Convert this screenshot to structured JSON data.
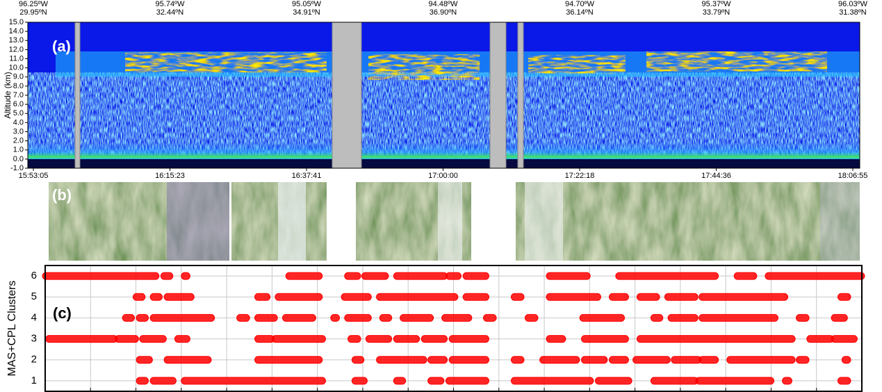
{
  "chart_data": [
    {
      "type": "curtain",
      "label": "(a)",
      "y_label": "Altitude (km)",
      "ylim": [
        -1,
        15
      ],
      "yticks": [
        {
          "value": -1,
          "label": "-1.0"
        },
        {
          "value": 0,
          "label": "0.0"
        },
        {
          "value": 1,
          "label": "1.0"
        },
        {
          "value": 2,
          "label": "2.0"
        },
        {
          "value": 3,
          "label": "3.0"
        },
        {
          "value": 4,
          "label": "4.0"
        },
        {
          "value": 5,
          "label": "5.0"
        },
        {
          "value": 6,
          "label": "6.0"
        },
        {
          "value": 7,
          "label": "7.0"
        },
        {
          "value": 8,
          "label": "8.0"
        },
        {
          "value": 9,
          "label": "9.0"
        },
        {
          "value": 10,
          "label": "10.0"
        },
        {
          "value": 11,
          "label": "11.0"
        },
        {
          "value": 12,
          "label": "12.0"
        },
        {
          "value": 13,
          "label": "13.0"
        },
        {
          "value": 14,
          "label": "14.0"
        },
        {
          "value": 15,
          "label": "15.0"
        }
      ],
      "categories": [
        "15:53:05",
        "16:15:23",
        "16:37:41",
        "17:00:00",
        "17:22:18",
        "17:44:36",
        "18:06:55"
      ],
      "top_labels": [
        [
          "96.25ºW",
          "29.95ºN"
        ],
        [
          "95.74ºW",
          "32.44ºN"
        ],
        [
          "95.05ºW",
          "34.91ºN"
        ],
        [
          "94.48ºW",
          "36.90ºN"
        ],
        [
          "94.70ºW",
          "36.14ºN"
        ],
        [
          "95.37ºW",
          "33.79ºN"
        ],
        [
          "96.03ºW",
          "31.38ºN"
        ]
      ]
    },
    {
      "type": "segments",
      "label": "(c)",
      "y_label": "MAS+CPL Clusters",
      "color": "#ff0000",
      "xlim": [
        0,
        100
      ],
      "ylim": [
        0.5,
        6.5
      ],
      "yticks": [
        1,
        2,
        3,
        4,
        5,
        6
      ],
      "series": [
        {
          "y": 6,
          "segments": [
            [
              0,
              13.6
            ],
            [
              14.5,
              15.3
            ],
            [
              17,
              17.4
            ],
            [
              29.8,
              33.6
            ],
            [
              37,
              38.3
            ],
            [
              39.1,
              41.7
            ],
            [
              43,
              48.9
            ],
            [
              49.4,
              50.6
            ],
            [
              51.5,
              54
            ],
            [
              61.7,
              66.4
            ],
            [
              70.2,
              82.1
            ],
            [
              84.7,
              86.8
            ],
            [
              88.5,
              100
            ]
          ]
        },
        {
          "y": 5,
          "segments": [
            [
              11.1,
              11.9
            ],
            [
              13.2,
              14
            ],
            [
              14.9,
              17.9
            ],
            [
              26,
              27.2
            ],
            [
              28.5,
              33.6
            ],
            [
              36.6,
              39.6
            ],
            [
              40.9,
              50.2
            ],
            [
              51.5,
              54
            ],
            [
              57.4,
              58.3
            ],
            [
              61.7,
              67.7
            ],
            [
              69.4,
              71.1
            ],
            [
              72.8,
              74.9
            ],
            [
              76.2,
              79.6
            ],
            [
              80.4,
              90.6
            ],
            [
              97.4,
              98.3
            ]
          ]
        },
        {
          "y": 4,
          "segments": [
            [
              9.8,
              10.6
            ],
            [
              11.5,
              12.3
            ],
            [
              13.2,
              20.4
            ],
            [
              23.8,
              24.7
            ],
            [
              26,
              28.1
            ],
            [
              29.4,
              32.8
            ],
            [
              35.3,
              35.7
            ],
            [
              37,
              39.6
            ],
            [
              41.3,
              42.1
            ],
            [
              43.8,
              47.2
            ],
            [
              48.9,
              51.9
            ],
            [
              54,
              54.9
            ],
            [
              59.1,
              60
            ],
            [
              65.8,
              70.6
            ],
            [
              74.5,
              75.3
            ],
            [
              76.6,
              79.6
            ],
            [
              80.4,
              89.4
            ],
            [
              92.3,
              93.2
            ],
            [
              96.6,
              97.9
            ]
          ]
        },
        {
          "y": 3,
          "segments": [
            [
              0.4,
              8.5
            ],
            [
              8.9,
              11.1
            ],
            [
              11.9,
              14.5
            ],
            [
              16.2,
              17.4
            ],
            [
              26,
              27.7
            ],
            [
              28.1,
              34
            ],
            [
              37.4,
              38.3
            ],
            [
              39.6,
              42.1
            ],
            [
              43,
              45.5
            ],
            [
              46.4,
              48.9
            ],
            [
              49.8,
              54
            ],
            [
              61.7,
              63.4
            ],
            [
              66,
              71.1
            ],
            [
              72.8,
              91.5
            ],
            [
              93.6,
              96.2
            ],
            [
              96.6,
              99.1
            ]
          ]
        },
        {
          "y": 2,
          "segments": [
            [
              11.5,
              12.8
            ],
            [
              14.9,
              20
            ],
            [
              26,
              33.6
            ],
            [
              37.9,
              38.7
            ],
            [
              40.9,
              46.4
            ],
            [
              47.2,
              48.9
            ],
            [
              49.8,
              54
            ],
            [
              57.4,
              58.3
            ],
            [
              60.9,
              65.1
            ],
            [
              66,
              68.5
            ],
            [
              69.4,
              71.1
            ],
            [
              72.3,
              76.2
            ],
            [
              77,
              80
            ],
            [
              80.4,
              82.1
            ],
            [
              83.8,
              91.5
            ],
            [
              92.3,
              93.2
            ],
            [
              97.9,
              98.3
            ]
          ]
        },
        {
          "y": 1,
          "segments": [
            [
              11.5,
              12.3
            ],
            [
              13.2,
              15.7
            ],
            [
              17,
              34
            ],
            [
              37.9,
              39.1
            ],
            [
              43,
              43.8
            ],
            [
              47.2,
              48.5
            ],
            [
              49.4,
              54
            ],
            [
              57.4,
              66.8
            ],
            [
              67.7,
              71.5
            ],
            [
              74.5,
              79.6
            ],
            [
              80,
              88.9
            ],
            [
              90.6,
              91.1
            ],
            [
              97.4,
              98.3
            ]
          ]
        }
      ]
    }
  ],
  "image_panel": {
    "label": "(b)"
  }
}
